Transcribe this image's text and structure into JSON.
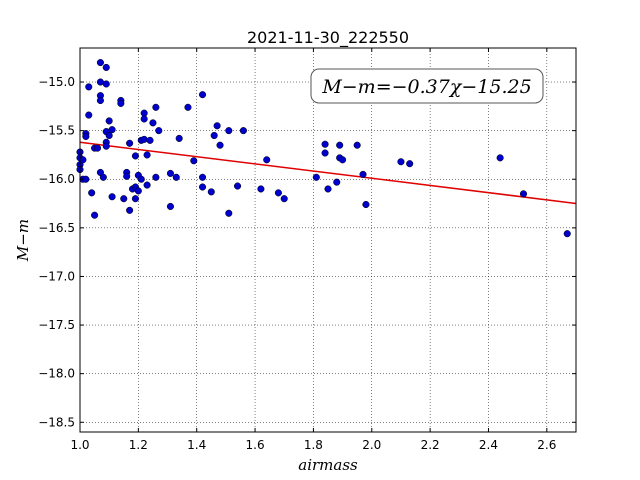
{
  "chart_data": {
    "type": "scatter",
    "title": "2021-11-30_222550",
    "xlabel": "airmass",
    "ylabel": "M−m",
    "annotation": "M−m=−0.37χ−15.25",
    "xlim": [
      1.0,
      2.7
    ],
    "ylim": [
      -18.6,
      -14.65
    ],
    "y_inverted": true,
    "grid": true,
    "xticks": [
      1.0,
      1.2,
      1.4,
      1.6,
      1.8,
      2.0,
      2.2,
      2.4,
      2.6
    ],
    "yticks": [
      -15.0,
      -15.5,
      -16.0,
      -16.5,
      -17.0,
      -17.5,
      -18.0,
      -18.5
    ],
    "point_color": "#0000cc",
    "fit_color": "#e00000",
    "fit": {
      "slope": -0.37,
      "intercept": -15.25
    },
    "points": [
      {
        "x": 1.0,
        "y": -15.72
      },
      {
        "x": 1.0,
        "y": -15.78
      },
      {
        "x": 1.0,
        "y": -15.85
      },
      {
        "x": 1.0,
        "y": -15.9
      },
      {
        "x": 1.01,
        "y": -15.8
      },
      {
        "x": 1.01,
        "y": -16.0
      },
      {
        "x": 1.02,
        "y": -15.53
      },
      {
        "x": 1.02,
        "y": -15.56
      },
      {
        "x": 1.02,
        "y": -16.0
      },
      {
        "x": 1.03,
        "y": -15.05
      },
      {
        "x": 1.03,
        "y": -15.34
      },
      {
        "x": 1.04,
        "y": -16.14
      },
      {
        "x": 1.05,
        "y": -15.68
      },
      {
        "x": 1.05,
        "y": -16.37
      },
      {
        "x": 1.06,
        "y": -15.68
      },
      {
        "x": 1.07,
        "y": -14.8
      },
      {
        "x": 1.07,
        "y": -15.0
      },
      {
        "x": 1.07,
        "y": -15.14
      },
      {
        "x": 1.07,
        "y": -15.19
      },
      {
        "x": 1.07,
        "y": -15.93
      },
      {
        "x": 1.08,
        "y": -15.98
      },
      {
        "x": 1.09,
        "y": -15.51
      },
      {
        "x": 1.09,
        "y": -15.62
      },
      {
        "x": 1.09,
        "y": -15.66
      },
      {
        "x": 1.09,
        "y": -14.85
      },
      {
        "x": 1.09,
        "y": -15.02
      },
      {
        "x": 1.1,
        "y": -15.4
      },
      {
        "x": 1.1,
        "y": -15.55
      },
      {
        "x": 1.11,
        "y": -15.49
      },
      {
        "x": 1.11,
        "y": -16.18
      },
      {
        "x": 1.14,
        "y": -15.19
      },
      {
        "x": 1.14,
        "y": -15.22
      },
      {
        "x": 1.15,
        "y": -16.2
      },
      {
        "x": 1.16,
        "y": -15.93
      },
      {
        "x": 1.16,
        "y": -15.97
      },
      {
        "x": 1.17,
        "y": -15.63
      },
      {
        "x": 1.17,
        "y": -16.32
      },
      {
        "x": 1.18,
        "y": -16.1
      },
      {
        "x": 1.19,
        "y": -15.76
      },
      {
        "x": 1.19,
        "y": -16.08
      },
      {
        "x": 1.19,
        "y": -16.2
      },
      {
        "x": 1.2,
        "y": -15.96
      },
      {
        "x": 1.2,
        "y": -16.12
      },
      {
        "x": 1.21,
        "y": -15.6
      },
      {
        "x": 1.21,
        "y": -16.0
      },
      {
        "x": 1.22,
        "y": -15.32
      },
      {
        "x": 1.22,
        "y": -15.38
      },
      {
        "x": 1.22,
        "y": -15.59
      },
      {
        "x": 1.23,
        "y": -15.75
      },
      {
        "x": 1.23,
        "y": -16.06
      },
      {
        "x": 1.24,
        "y": -15.6
      },
      {
        "x": 1.25,
        "y": -15.42
      },
      {
        "x": 1.26,
        "y": -15.98
      },
      {
        "x": 1.26,
        "y": -15.26
      },
      {
        "x": 1.27,
        "y": -15.5
      },
      {
        "x": 1.31,
        "y": -15.94
      },
      {
        "x": 1.31,
        "y": -16.28
      },
      {
        "x": 1.33,
        "y": -15.98
      },
      {
        "x": 1.34,
        "y": -15.58
      },
      {
        "x": 1.37,
        "y": -15.26
      },
      {
        "x": 1.39,
        "y": -15.81
      },
      {
        "x": 1.42,
        "y": -15.13
      },
      {
        "x": 1.42,
        "y": -15.98
      },
      {
        "x": 1.42,
        "y": -16.08
      },
      {
        "x": 1.45,
        "y": -16.13
      },
      {
        "x": 1.46,
        "y": -15.55
      },
      {
        "x": 1.47,
        "y": -15.45
      },
      {
        "x": 1.48,
        "y": -15.65
      },
      {
        "x": 1.51,
        "y": -15.5
      },
      {
        "x": 1.51,
        "y": -16.35
      },
      {
        "x": 1.54,
        "y": -16.07
      },
      {
        "x": 1.56,
        "y": -15.5
      },
      {
        "x": 1.62,
        "y": -16.1
      },
      {
        "x": 1.64,
        "y": -15.8
      },
      {
        "x": 1.68,
        "y": -16.14
      },
      {
        "x": 1.7,
        "y": -16.2
      },
      {
        "x": 1.81,
        "y": -15.98
      },
      {
        "x": 1.84,
        "y": -15.73
      },
      {
        "x": 1.84,
        "y": -15.64
      },
      {
        "x": 1.85,
        "y": -16.1
      },
      {
        "x": 1.88,
        "y": -16.03
      },
      {
        "x": 1.89,
        "y": -15.65
      },
      {
        "x": 1.89,
        "y": -15.78
      },
      {
        "x": 1.9,
        "y": -15.8
      },
      {
        "x": 1.95,
        "y": -15.65
      },
      {
        "x": 1.97,
        "y": -15.95
      },
      {
        "x": 1.98,
        "y": -16.26
      },
      {
        "x": 2.1,
        "y": -15.82
      },
      {
        "x": 2.13,
        "y": -15.84
      },
      {
        "x": 2.44,
        "y": -15.78
      },
      {
        "x": 2.52,
        "y": -16.15
      },
      {
        "x": 2.67,
        "y": -16.56
      }
    ]
  }
}
